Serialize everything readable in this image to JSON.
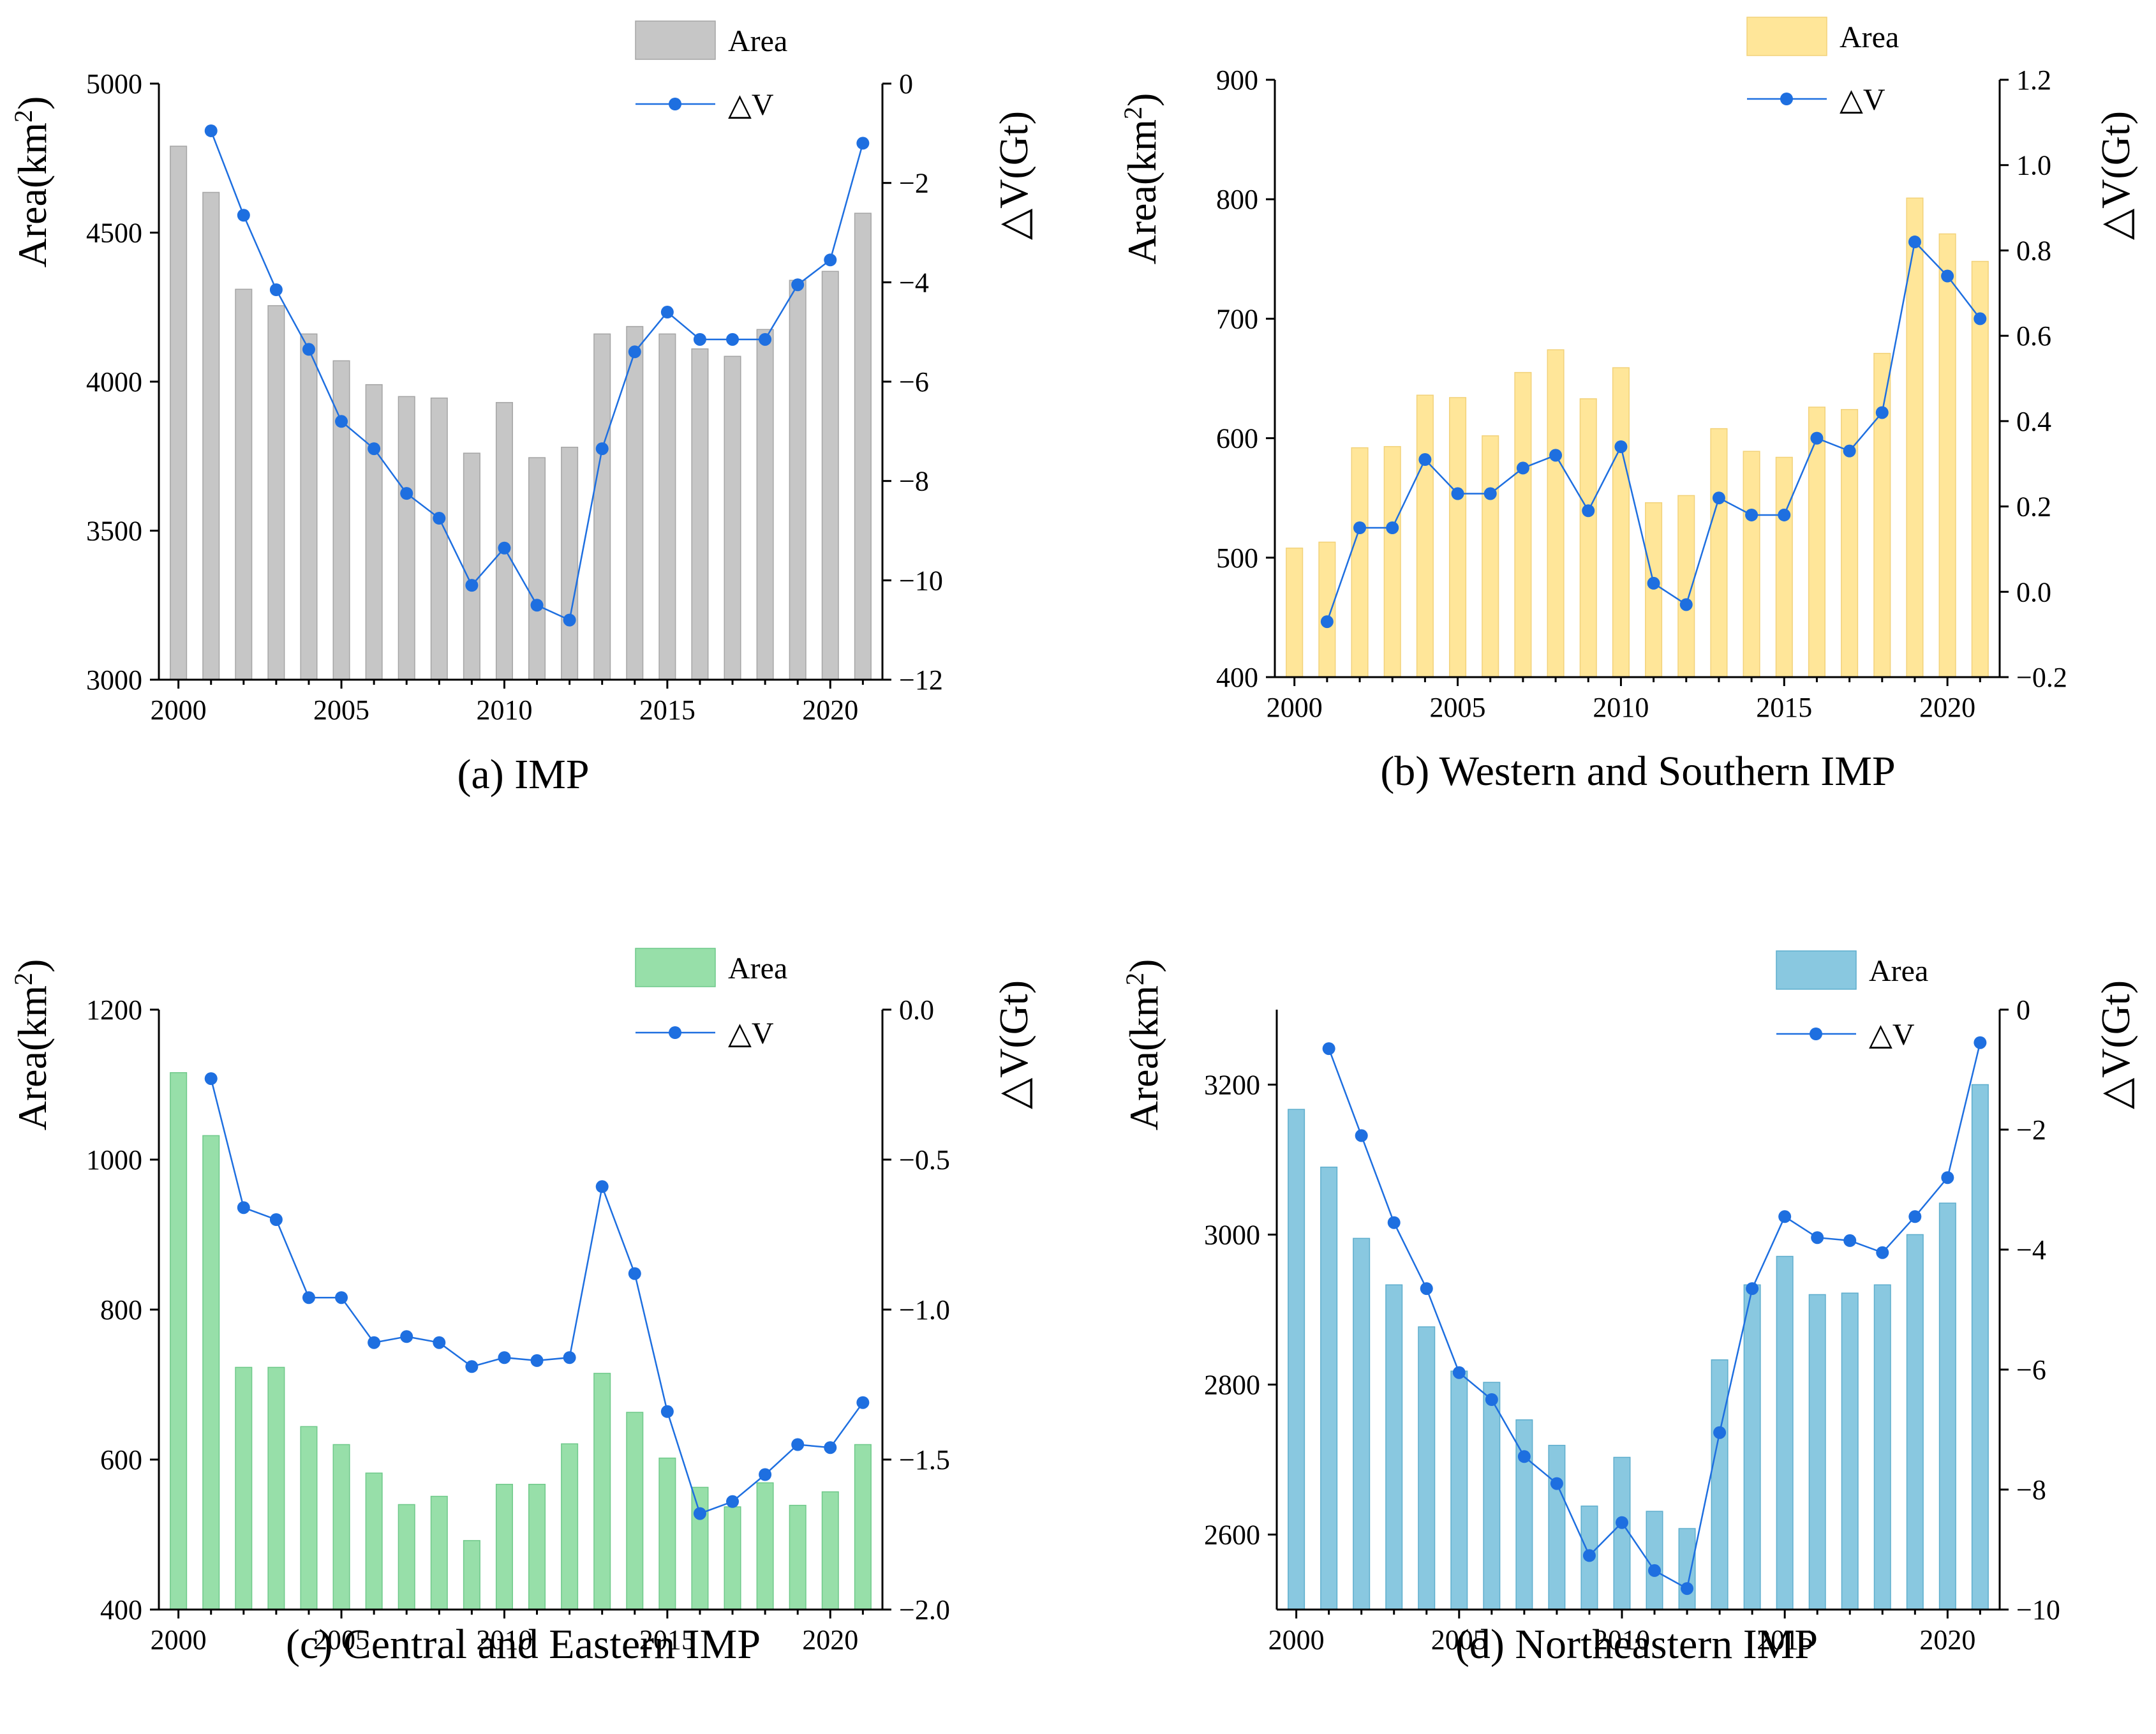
{
  "chart_data": [
    {
      "id": "a",
      "type": "bar+line",
      "title": "(a) IMP",
      "xlabel": "",
      "x": [
        2000,
        2001,
        2002,
        2003,
        2004,
        2005,
        2006,
        2007,
        2008,
        2009,
        2010,
        2011,
        2012,
        2013,
        2014,
        2015,
        2016,
        2017,
        2018,
        2019,
        2020,
        2021
      ],
      "xticks": [
        "2000",
        "2005",
        "2010",
        "2015",
        "2020"
      ],
      "ylabel": "Area(km",
      "ylabel_sup": "2",
      "ylabel_close": ")",
      "ylim": [
        3000,
        5000
      ],
      "yticks": [
        "3000",
        "3500",
        "4000",
        "4500",
        "5000"
      ],
      "y2label": "△V(Gt)",
      "y2lim": [
        -12,
        0
      ],
      "y2ticks": [
        "−12",
        "−10",
        "−8",
        "−6",
        "−4",
        "−2",
        "0"
      ],
      "series": [
        {
          "name": "Area",
          "kind": "bar",
          "color": "#c6c6c6",
          "edge": "#a5a5a5",
          "values": [
            4790,
            4635,
            4310,
            4255,
            4160,
            4070,
            3990,
            3950,
            3945,
            3760,
            3930,
            3745,
            3780,
            4160,
            4185,
            4160,
            4110,
            4085,
            4175,
            4340,
            4370,
            4565
          ]
        },
        {
          "name": "△V",
          "kind": "line",
          "axis": "right",
          "color": "#1e6fe0",
          "values": [
            null,
            -0.95,
            -2.65,
            -4.15,
            -5.35,
            -6.8,
            -7.35,
            -8.25,
            -8.75,
            -10.1,
            -9.35,
            -10.5,
            -10.8,
            -7.35,
            -5.4,
            -4.6,
            -5.15,
            -5.15,
            -5.15,
            -4.05,
            -3.55,
            -1.2
          ]
        }
      ],
      "colors": {
        "bar": "#c6c6c6",
        "bar_edge": "#a5a5a5",
        "line": "#1e6fe0"
      }
    },
    {
      "id": "b",
      "type": "bar+line",
      "title": "(b) Western and Southern IMP",
      "xlabel": "",
      "x": [
        2000,
        2001,
        2002,
        2003,
        2004,
        2005,
        2006,
        2007,
        2008,
        2009,
        2010,
        2011,
        2012,
        2013,
        2014,
        2015,
        2016,
        2017,
        2018,
        2019,
        2020,
        2021
      ],
      "xticks": [
        "2000",
        "2005",
        "2010",
        "2015",
        "2020"
      ],
      "ylabel": "Area(km",
      "ylabel_sup": "2",
      "ylabel_close": ")",
      "ylim": [
        400,
        900
      ],
      "yticks": [
        "400",
        "500",
        "600",
        "700",
        "800",
        "900"
      ],
      "y2label": "△V(Gt)",
      "y2lim": [
        -0.2,
        1.2
      ],
      "y2ticks": [
        "−0.2",
        "0.0",
        "0.2",
        "0.4",
        "0.6",
        "0.8",
        "1.0",
        "1.2"
      ],
      "series": [
        {
          "name": "Area",
          "kind": "bar",
          "color": "#ffe699",
          "edge": "#f2d27a",
          "values": [
            508,
            513,
            592,
            593,
            636,
            634,
            602,
            655,
            674,
            633,
            659,
            546,
            552,
            608,
            589,
            584,
            626,
            624,
            671,
            801,
            771,
            748
          ]
        },
        {
          "name": "△V",
          "kind": "line",
          "axis": "right",
          "color": "#1e6fe0",
          "values": [
            null,
            -0.07,
            0.15,
            0.15,
            0.31,
            0.23,
            0.23,
            0.29,
            0.32,
            0.19,
            0.34,
            0.02,
            -0.03,
            0.22,
            0.18,
            0.18,
            0.36,
            0.33,
            0.42,
            0.82,
            0.74,
            0.64
          ]
        }
      ],
      "colors": {
        "bar": "#ffe699",
        "bar_edge": "#f2d27a",
        "line": "#1e6fe0"
      }
    },
    {
      "id": "c",
      "type": "bar+line",
      "title": "(c) Central and Eastern IMP",
      "xlabel": "",
      "x": [
        2000,
        2001,
        2002,
        2003,
        2004,
        2005,
        2006,
        2007,
        2008,
        2009,
        2010,
        2011,
        2012,
        2013,
        2014,
        2015,
        2016,
        2017,
        2018,
        2019,
        2020,
        2021
      ],
      "xticks": [
        "2000",
        "2005",
        "2010",
        "2015",
        "2020"
      ],
      "ylabel": "Area(km",
      "ylabel_sup": "2",
      "ylabel_close": ")",
      "ylim": [
        400,
        1200
      ],
      "yticks": [
        "400",
        "600",
        "800",
        "1000",
        "1200"
      ],
      "y2label": "△V(Gt)",
      "y2lim": [
        -2.0,
        0.0
      ],
      "y2ticks": [
        "−2.0",
        "−1.5",
        "−1.0",
        "−0.5",
        "0.0"
      ],
      "series": [
        {
          "name": "Area",
          "kind": "bar",
          "color": "#97dfa9",
          "edge": "#6fc98a",
          "values": [
            1116,
            1032,
            723,
            723,
            644,
            620,
            582,
            540,
            551,
            492,
            567,
            567,
            621,
            715,
            663,
            602,
            563,
            537,
            569,
            539,
            557,
            620
          ]
        },
        {
          "name": "△V",
          "kind": "line",
          "axis": "right",
          "color": "#1e6fe0",
          "values": [
            null,
            -0.23,
            -0.66,
            -0.7,
            -0.96,
            -0.96,
            -1.11,
            -1.09,
            -1.11,
            -1.19,
            -1.16,
            -1.17,
            -1.16,
            -0.59,
            -0.88,
            -1.34,
            -1.68,
            -1.64,
            -1.55,
            -1.45,
            -1.46,
            -1.31
          ]
        }
      ],
      "colors": {
        "bar": "#97dfa9",
        "bar_edge": "#6fc98a",
        "line": "#1e6fe0"
      }
    },
    {
      "id": "d",
      "type": "bar+line",
      "title": "(d) Northeastern IMP",
      "xlabel": "",
      "x": [
        2000,
        2001,
        2002,
        2003,
        2004,
        2005,
        2006,
        2007,
        2008,
        2009,
        2010,
        2011,
        2012,
        2013,
        2014,
        2015,
        2016,
        2017,
        2018,
        2019,
        2020,
        2021
      ],
      "xticks": [
        "2000",
        "2005",
        "2010",
        "2015",
        "2020"
      ],
      "ylabel": "Area(km",
      "ylabel_sup": "2",
      "ylabel_close": ")",
      "ylim": [
        2500,
        3300
      ],
      "yticks": [
        "2600",
        "2800",
        "3000",
        "3200"
      ],
      "y2label": "△V(Gt)",
      "y2lim": [
        -10,
        0
      ],
      "y2ticks": [
        "−10",
        "−8",
        "−6",
        "−4",
        "−2",
        "0"
      ],
      "series": [
        {
          "name": "Area",
          "kind": "bar",
          "color": "#89c8e0",
          "edge": "#5eaecd",
          "values": [
            3167,
            3090,
            2995,
            2933,
            2877,
            2818,
            2803,
            2753,
            2719,
            2638,
            2703,
            2631,
            2608,
            2833,
            2933,
            2971,
            2920,
            2922,
            2933,
            3000,
            3042,
            3200
          ]
        },
        {
          "name": "△V",
          "kind": "line",
          "axis": "right",
          "color": "#1e6fe0",
          "values": [
            null,
            -0.65,
            -2.1,
            -3.55,
            -4.65,
            -6.05,
            -6.5,
            -7.45,
            -7.9,
            -9.1,
            -8.55,
            -9.35,
            -9.65,
            -7.05,
            -4.65,
            -3.45,
            -3.8,
            -3.85,
            -4.05,
            -3.45,
            -2.8,
            -0.55
          ]
        }
      ],
      "colors": {
        "bar": "#89c8e0",
        "bar_edge": "#5eaecd",
        "line": "#1e6fe0"
      }
    }
  ]
}
